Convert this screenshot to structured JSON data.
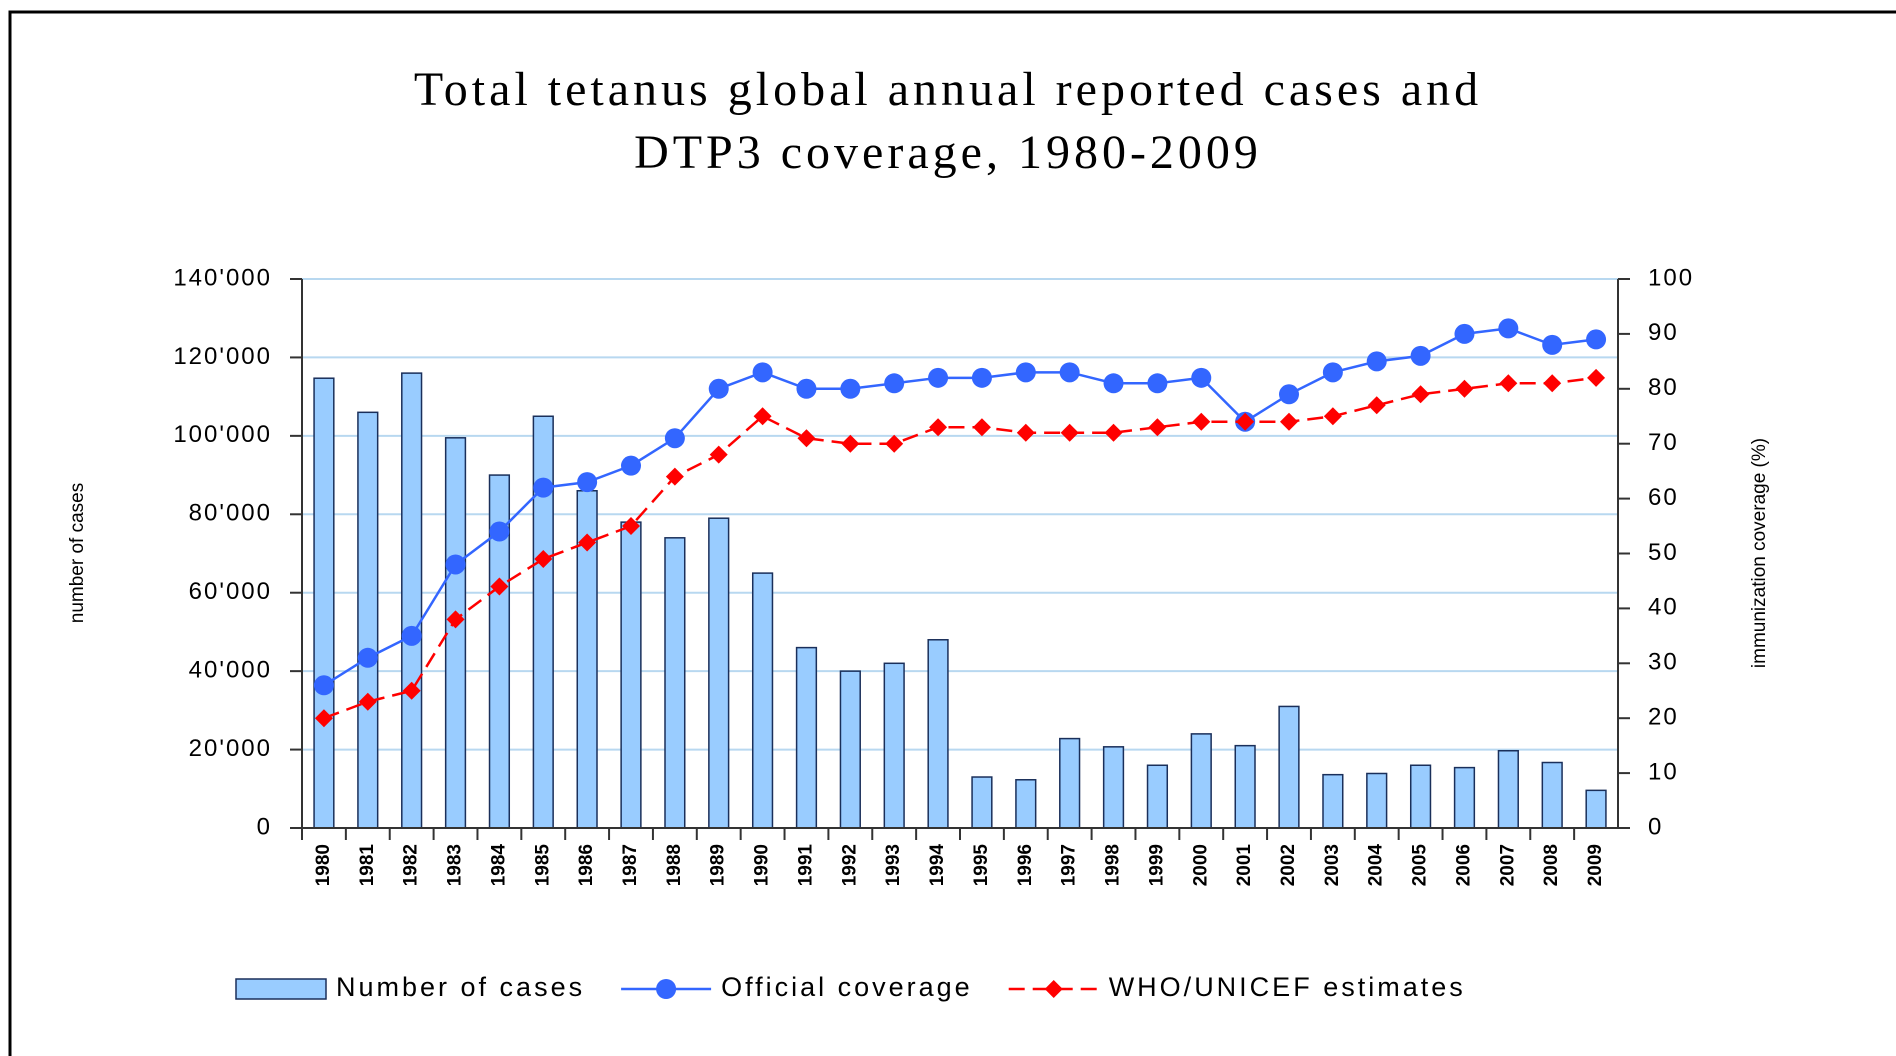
{
  "chart_data": {
    "type": "bar_line",
    "title": [
      "Total tetanus global annual reported cases and",
      "DTP3 coverage, 1980-2009"
    ],
    "y_label": "number of cases",
    "y2_label": "immunization coverage (%)",
    "categories": [
      "1980",
      "1981",
      "1982",
      "1983",
      "1984",
      "1985",
      "1986",
      "1987",
      "1988",
      "1989",
      "1990",
      "1991",
      "1992",
      "1993",
      "1994",
      "1995",
      "1996",
      "1997",
      "1998",
      "1999",
      "2000",
      "2001",
      "2002",
      "2003",
      "2004",
      "2005",
      "2006",
      "2007",
      "2008",
      "2009"
    ],
    "series": [
      {
        "name": "Number of cases",
        "type": "bar",
        "color": "#99ccff",
        "values": [
          114700,
          106000,
          116000,
          99500,
          90000,
          105000,
          86000,
          78000,
          74000,
          79000,
          65000,
          46000,
          40000,
          42000,
          48000,
          13000,
          12300,
          22800,
          20700,
          16000,
          24000,
          21000,
          31000,
          13600,
          13900,
          16000,
          15400,
          19700,
          16700,
          9600
        ]
      },
      {
        "name": "Official coverage",
        "type": "line",
        "axis": "y2",
        "color": "#3366ff",
        "marker": "circle",
        "values": [
          26,
          31,
          35,
          48,
          54,
          62,
          63,
          66,
          71,
          80,
          83,
          80,
          80,
          81,
          82,
          82,
          83,
          83,
          81,
          81,
          82,
          74,
          79,
          83,
          85,
          86,
          90,
          91,
          88,
          89
        ]
      },
      {
        "name": "WHO/UNICEF estimates",
        "type": "line",
        "axis": "y2",
        "color": "#ff0000",
        "marker": "diamond",
        "dashed": true,
        "values": [
          20,
          23,
          25,
          38,
          44,
          49,
          52,
          55,
          64,
          68,
          75,
          71,
          70,
          70,
          73,
          73,
          72,
          72,
          72,
          73,
          74,
          74,
          74,
          75,
          77,
          79,
          80,
          81,
          81,
          82
        ]
      }
    ],
    "ylim": [
      0,
      140000
    ],
    "yticks": [
      0,
      {
        "value": 20000,
        "label": "20'000"
      },
      {
        "value": 40000,
        "label": "40'000"
      },
      {
        "value": 60000,
        "label": "60'000"
      },
      {
        "value": 80000,
        "label": "80'000"
      },
      {
        "value": 100000,
        "label": "100'000"
      },
      {
        "value": 120000,
        "label": "120'000"
      },
      {
        "value": 140000,
        "label": "140'000"
      }
    ],
    "y2lim": [
      0,
      100
    ],
    "y2ticks": [
      0,
      10,
      20,
      30,
      40,
      50,
      60,
      70,
      80,
      90,
      100
    ],
    "grid": true,
    "legend": "bottom"
  }
}
